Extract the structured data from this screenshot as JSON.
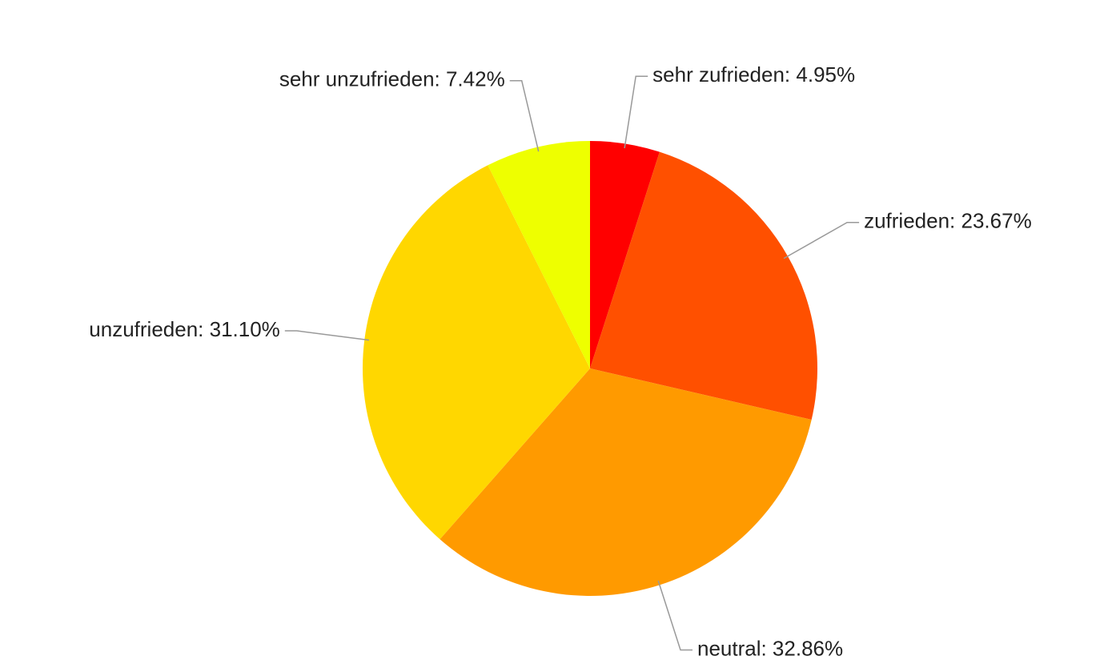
{
  "chart_data": {
    "type": "pie",
    "values": [
      4.95,
      23.67,
      32.86,
      31.1,
      7.42
    ],
    "value_labels": [
      "sehr zufrieden: 4.95%",
      "zufrieden: 23.67%",
      "neutral: 32.86%",
      "unzufrieden: 31.10%",
      "sehr unzufrieden: 7.42%"
    ],
    "colors": [
      "#ff0000",
      "#ff5000",
      "#ff9a00",
      "#ffd700",
      "#eeff00"
    ]
  }
}
